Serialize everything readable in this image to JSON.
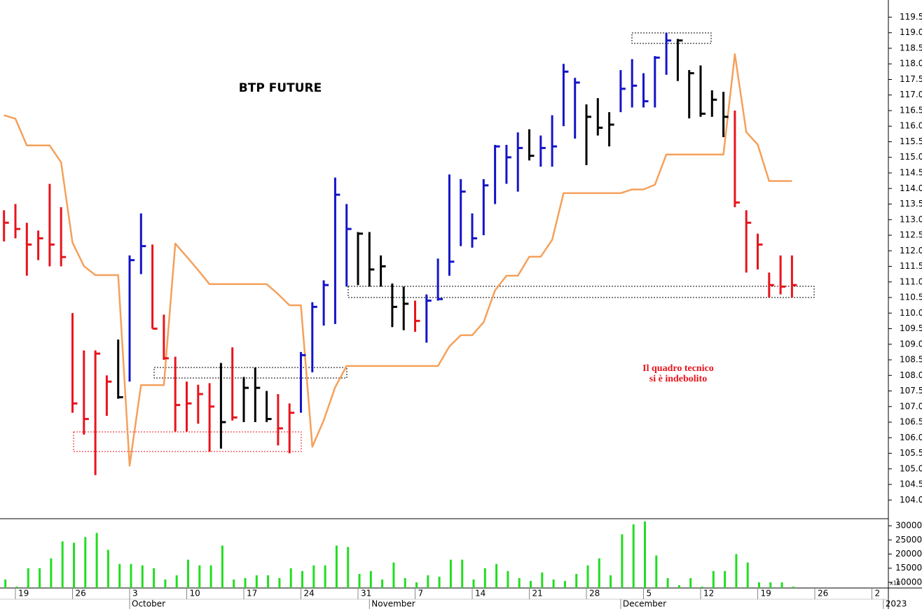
{
  "chart_data": {
    "type": "hlc",
    "title": "BTP FUTURE",
    "annotation": [
      "Il quadro tecnico",
      "si è indebolito"
    ],
    "categories": [
      null,
      "19",
      null,
      null,
      null,
      null,
      "26",
      null,
      null,
      null,
      null,
      "3",
      null,
      null,
      null,
      null,
      "10",
      null,
      null,
      null,
      null,
      "17",
      null,
      null,
      null,
      null,
      "24",
      null,
      null,
      null,
      null,
      "31",
      null,
      null,
      null,
      null,
      "7",
      null,
      null,
      null,
      null,
      "14",
      null,
      null,
      null,
      null,
      "21",
      null,
      null,
      null,
      null,
      "28",
      null,
      null,
      null,
      null,
      "5",
      null,
      null,
      null,
      null,
      "12",
      null,
      null,
      null,
      null,
      "19",
      null,
      null,
      null,
      null,
      "26",
      null,
      null,
      null,
      null,
      "2",
      null
    ],
    "months": [
      null,
      null,
      null,
      null,
      null,
      null,
      null,
      null,
      null,
      null,
      null,
      "October",
      null,
      null,
      null,
      null,
      null,
      null,
      null,
      null,
      null,
      null,
      null,
      null,
      null,
      null,
      null,
      null,
      null,
      null,
      null,
      null,
      "November",
      null,
      null,
      null,
      null,
      null,
      null,
      null,
      null,
      null,
      null,
      null,
      null,
      null,
      null,
      null,
      null,
      null,
      null,
      null,
      null,
      null,
      "December",
      null,
      null,
      null,
      null,
      null,
      null,
      null,
      null,
      null,
      null,
      null,
      null,
      null,
      null,
      null,
      null,
      null,
      null,
      null,
      null,
      null,
      null,
      "2023"
    ],
    "high": [
      113.3,
      113.5,
      112.9,
      112.65,
      114.15,
      113.4,
      110.0,
      108.8,
      108.8,
      108.0,
      109.15,
      111.85,
      113.2,
      112.2,
      109.95,
      108.6,
      107.8,
      107.7,
      107.75,
      108.4,
      108.9,
      107.95,
      108.25,
      107.5,
      107.4,
      107.1,
      108.75,
      110.35,
      111.05,
      114.35,
      113.5,
      112.6,
      112.6,
      111.85,
      110.95,
      110.85,
      110.4,
      110.6,
      111.75,
      114.45,
      114.3,
      113.2,
      114.3,
      115.4,
      115.4,
      115.8,
      115.9,
      115.7,
      116.35,
      118.0,
      117.55,
      116.7,
      116.9,
      116.45,
      117.8,
      118.15,
      117.7,
      118.25,
      119.0,
      118.8,
      117.8,
      117.95,
      117.15,
      117.1,
      116.5,
      113.3,
      112.55,
      111.3,
      111.85,
      111.85,
      null,
      null,
      null,
      null,
      null,
      null,
      null,
      null
    ],
    "low": [
      112.3,
      112.4,
      111.2,
      111.7,
      111.5,
      111.5,
      106.8,
      106.1,
      104.8,
      106.7,
      107.25,
      107.8,
      111.25,
      109.5,
      108.5,
      106.2,
      106.2,
      106.45,
      105.55,
      105.65,
      106.55,
      106.5,
      106.5,
      106.5,
      105.75,
      105.5,
      106.8,
      108.1,
      109.6,
      109.65,
      110.85,
      110.9,
      110.85,
      110.85,
      109.55,
      109.45,
      109.4,
      109.05,
      110.4,
      111.2,
      112.15,
      112.1,
      112.5,
      113.5,
      114.15,
      113.9,
      114.9,
      114.7,
      114.7,
      116.0,
      115.6,
      114.75,
      115.7,
      115.35,
      116.45,
      116.6,
      116.6,
      116.6,
      117.65,
      117.45,
      116.25,
      116.3,
      116.3,
      115.65,
      113.4,
      111.3,
      111.4,
      110.5,
      110.6,
      110.5,
      null,
      null,
      null,
      null,
      null,
      null,
      null,
      null
    ],
    "close": [
      112.9,
      112.7,
      112.2,
      112.4,
      112.2,
      111.8,
      107.1,
      106.6,
      108.7,
      107.8,
      107.3,
      111.7,
      112.15,
      109.5,
      108.55,
      107.05,
      107.1,
      107.4,
      107.0,
      106.5,
      106.65,
      107.6,
      107.6,
      106.6,
      106.3,
      106.8,
      108.65,
      110.2,
      110.9,
      113.8,
      112.7,
      112.55,
      111.4,
      111.5,
      110.2,
      110.3,
      109.75,
      110.4,
      110.45,
      111.65,
      113.9,
      112.4,
      114.1,
      115.35,
      115.0,
      115.3,
      115.05,
      115.3,
      115.35,
      117.75,
      117.4,
      116.3,
      115.95,
      116.05,
      117.2,
      117.3,
      116.8,
      118.2,
      118.75,
      118.75,
      117.7,
      116.4,
      116.85,
      116.3,
      113.55,
      112.9,
      112.2,
      110.9,
      110.85,
      110.9,
      null,
      null,
      null,
      null,
      null,
      null,
      null,
      null
    ],
    "colors": [
      "#e8141c",
      "#e8141c",
      "#e8141c",
      "#e8141c",
      "#e8141c",
      "#e8141c",
      "#e8141c",
      "#e8141c",
      "#e8141c",
      "#e8141c",
      "#000000",
      "#1414c8",
      "#1414c8",
      "#e8141c",
      "#e8141c",
      "#e8141c",
      "#e8141c",
      "#e8141c",
      "#e8141c",
      "#000000",
      "#e8141c",
      "#000000",
      "#000000",
      "#000000",
      "#e8141c",
      "#e8141c",
      "#1414c8",
      "#1414c8",
      "#1414c8",
      "#1414c8",
      "#1414c8",
      "#000000",
      "#000000",
      "#000000",
      "#000000",
      "#000000",
      "#e8141c",
      "#1414c8",
      "#1414c8",
      "#1414c8",
      "#1414c8",
      "#1414c8",
      "#1414c8",
      "#1414c8",
      "#1414c8",
      "#1414c8",
      "#000000",
      "#1414c8",
      "#1414c8",
      "#1414c8",
      "#1414c8",
      "#000000",
      "#000000",
      "#000000",
      "#1414c8",
      "#1414c8",
      "#1414c8",
      "#1414c8",
      "#1414c8",
      "#000000",
      "#000000",
      "#000000",
      "#000000",
      "#000000",
      "#e8141c",
      "#e8141c",
      "#e8141c",
      "#e8141c",
      "#e8141c",
      "#e8141c",
      null,
      null,
      null,
      null,
      null,
      null,
      null,
      null
    ],
    "overlay": {
      "color": "#f5a05a",
      "values": [
        116.35,
        116.24,
        115.38,
        115.38,
        115.38,
        114.84,
        112.26,
        111.51,
        111.22,
        111.22,
        111.22,
        105.1,
        107.69,
        107.69,
        107.69,
        112.23,
        111.81,
        111.38,
        110.93,
        110.93,
        110.93,
        110.93,
        110.93,
        110.93,
        110.61,
        110.25,
        110.25,
        105.71,
        106.56,
        107.62,
        108.3,
        108.3,
        108.3,
        108.3,
        108.3,
        108.3,
        108.3,
        108.3,
        108.3,
        108.93,
        109.29,
        109.29,
        109.71,
        110.73,
        111.2,
        111.2,
        111.81,
        111.81,
        112.35,
        113.85,
        113.85,
        113.85,
        113.85,
        113.85,
        113.85,
        113.97,
        113.97,
        114.12,
        115.09,
        115.09,
        115.09,
        115.09,
        115.09,
        115.09,
        118.31,
        115.81,
        115.41,
        114.24,
        114.24,
        114.24,
        null,
        null,
        null,
        null,
        null,
        null,
        null,
        null
      ]
    },
    "ylim": [
      103.4,
      120.05
    ],
    "yticks": [
      {
        "value": 104,
        "label": "104.0"
      },
      104.5,
      {
        "value": 105,
        "label": "105.0"
      },
      105.5,
      {
        "value": 106,
        "label": "106.0"
      },
      106.5,
      {
        "value": 107,
        "label": "107.0"
      },
      107.5,
      {
        "value": 108,
        "label": "108.0"
      },
      108.5,
      {
        "value": 109,
        "label": "109.0"
      },
      109.5,
      {
        "value": 110,
        "label": "110.0"
      },
      110.5,
      {
        "value": 111,
        "label": "111.0"
      },
      111.5,
      {
        "value": 112,
        "label": "112.0"
      },
      112.5,
      {
        "value": 113,
        "label": "113.0"
      },
      113.5,
      {
        "value": 114,
        "label": "114.0"
      },
      114.5,
      {
        "value": 115,
        "label": "115.0"
      },
      115.5,
      {
        "value": 116,
        "label": "116.0"
      },
      116.5,
      {
        "value": 117,
        "label": "117.0"
      },
      117.5,
      {
        "value": 118,
        "label": "118.0"
      },
      118.5,
      {
        "value": 119,
        "label": "119.0"
      },
      119.5
    ],
    "volume": {
      "color": "#22dd22",
      "unit_label": "x10",
      "values": [
        11000,
        8500,
        15000,
        15000,
        18500,
        24500,
        24000,
        26000,
        27500,
        21500,
        16500,
        16500,
        16000,
        15000,
        11000,
        12500,
        18000,
        16000,
        16000,
        23000,
        11000,
        11500,
        12500,
        12500,
        11500,
        15000,
        14000,
        16000,
        16000,
        23000,
        22500,
        13000,
        14000,
        11000,
        17000,
        11500,
        10000,
        12500,
        12000,
        18000,
        18000,
        11000,
        15000,
        16500,
        14000,
        11500,
        10500,
        13500,
        11000,
        10500,
        13000,
        16000,
        18500,
        12500,
        27000,
        30500,
        31500,
        19500,
        11500,
        9000,
        11500,
        8500,
        14000,
        14000,
        20000,
        17000,
        10000,
        10000,
        10000,
        8500,
        null,
        null,
        null,
        null,
        null,
        null,
        null,
        null
      ],
      "ylim": [
        8000,
        32500
      ],
      "yticks": [
        10000,
        15000,
        20000,
        25000,
        30000
      ]
    }
  }
}
